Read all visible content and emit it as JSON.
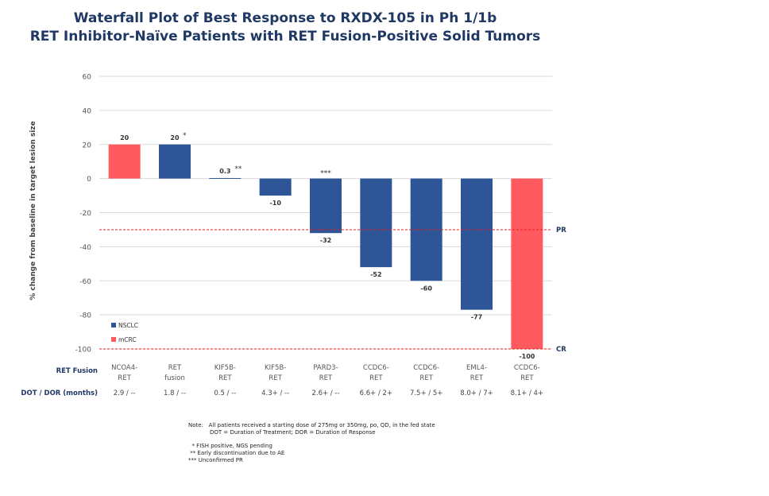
{
  "chart_data": {
    "type": "bar",
    "title_line1": "Waterfall Plot of Best Response to RXDX-105 in Ph 1/1b",
    "title_line2": "RET Inhibitor-Naïve Patients with RET Fusion-Positive Solid Tumors",
    "ylabel": "% change from baseline in target lesion size",
    "ylim": [
      -100,
      60
    ],
    "yticks": [
      60,
      40,
      20,
      0,
      -20,
      -40,
      -60,
      -80,
      -100
    ],
    "grid": true,
    "categories": [
      [
        "NCOA4-",
        "RET"
      ],
      [
        "RET",
        "fusion"
      ],
      [
        "KIF5B-",
        "RET"
      ],
      [
        "KIF5B-",
        "RET"
      ],
      [
        "PARD3-",
        "RET"
      ],
      [
        "CCDC6-",
        "RET"
      ],
      [
        "CCDC6-",
        "RET"
      ],
      [
        "EML4-",
        "RET"
      ],
      [
        "CCDC6-",
        "RET"
      ]
    ],
    "values": [
      20,
      20,
      0.3,
      -10,
      -32,
      -52,
      -60,
      -77,
      -100
    ],
    "data_labels": [
      "20",
      "20",
      "0.3",
      "-10",
      "-32",
      "-52",
      "-60",
      "-77",
      "-100"
    ],
    "annotations": [
      "",
      "*",
      "**",
      "",
      "***",
      "",
      "",
      "",
      ""
    ],
    "series_of_bar": [
      "mCRC",
      "NSCLC",
      "NSCLC",
      "NSCLC",
      "NSCLC",
      "NSCLC",
      "NSCLC",
      "NSCLC",
      "mCRC"
    ],
    "dot_dor": [
      "2.9 / --",
      "1.8 / --",
      "0.5 / --",
      "4.3+ / --",
      "2.6+ / --",
      "6.6+ / 2+",
      "7.5+ / 5+",
      "8.0+ / 7+",
      "8.1+ / 4+"
    ],
    "row_labels": {
      "fusion": "RET Fusion",
      "dot": "DOT / DOR (months)"
    },
    "legend": [
      {
        "name": "NSCLC",
        "color": "#2E5597"
      },
      {
        "name": "mCRC",
        "color": "#FF5A5F"
      }
    ],
    "legend_placement": "bottom-left",
    "reference_lines": [
      {
        "value": -30,
        "label": "PR",
        "color": "#E02020"
      },
      {
        "value": -100,
        "label": "CR",
        "color": "#E02020"
      }
    ]
  },
  "notes": {
    "note_label": "Note:",
    "note1": "All patients received a starting dose of 275mg or 350mg, po, QD, in the fed state",
    "note2": "DOT = Duration of Treatment; DOR = Duration of Response",
    "fn1": "  * FISH positive, NGS pending",
    "fn2": " ** Early discontinuation due to AE",
    "fn3": "*** Unconfirmed PR"
  }
}
